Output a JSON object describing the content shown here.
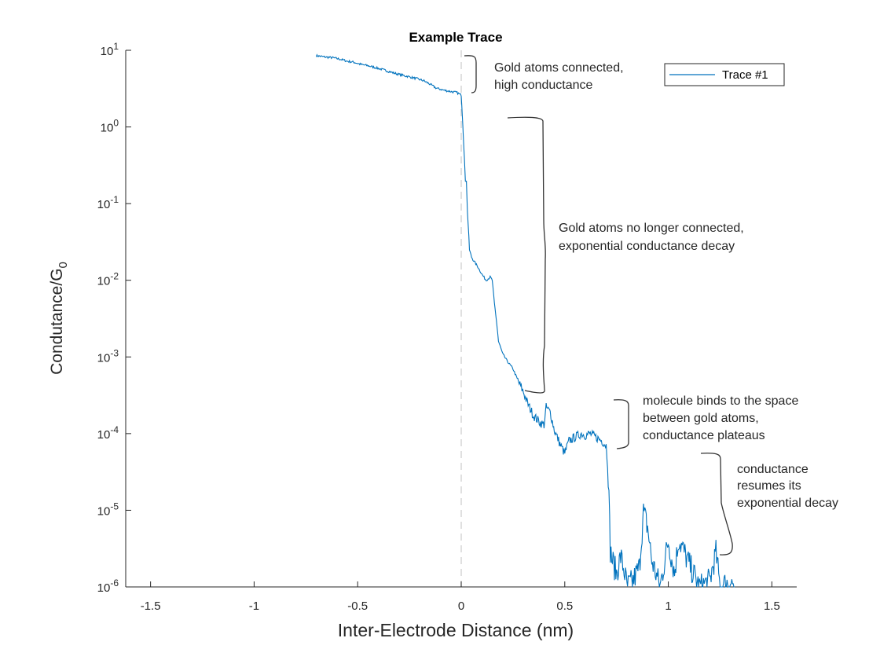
{
  "chart_data": {
    "type": "line",
    "title": "Example Trace",
    "xlabel": "Inter-Electrode Distance (nm)",
    "ylabel": "Condutance/G",
    "ylabel_subscript": "0",
    "xlim": [
      -1.62,
      1.62
    ],
    "ylim": [
      1e-06,
      10
    ],
    "yscale": "log",
    "x_ticks": [
      -1.5,
      -1,
      -0.5,
      0,
      0.5,
      1,
      1.5
    ],
    "x_tick_labels": [
      "-1.5",
      "-1",
      "-0.5",
      "0",
      "0.5",
      "1",
      "1.5"
    ],
    "y_tick_exponents": [
      "1",
      "0",
      "-1",
      "-2",
      "-3",
      "-4",
      "-5",
      "-6"
    ],
    "y_tick_base": "10",
    "grid": false,
    "legend_position": "top-right",
    "reference_line": {
      "x": 0,
      "style": "dashed"
    },
    "series": [
      {
        "name": "Trace #1",
        "color": "#0072BD",
        "x": [
          -0.7,
          -0.66,
          -0.62,
          -0.58,
          -0.55,
          -0.52,
          -0.48,
          -0.45,
          -0.42,
          -0.38,
          -0.35,
          -0.32,
          -0.28,
          -0.25,
          -0.22,
          -0.18,
          -0.15,
          -0.12,
          -0.1,
          -0.08,
          -0.05,
          -0.02,
          0.0,
          0.005,
          0.01,
          0.015,
          0.02,
          0.025,
          0.03,
          0.04,
          0.05,
          0.06,
          0.08,
          0.1,
          0.12,
          0.14,
          0.15,
          0.16,
          0.17,
          0.18,
          0.2,
          0.22,
          0.25,
          0.28,
          0.3,
          0.32,
          0.35,
          0.38,
          0.4,
          0.41,
          0.43,
          0.45,
          0.48,
          0.5,
          0.52,
          0.55,
          0.58,
          0.6,
          0.62,
          0.65,
          0.68,
          0.7,
          0.71,
          0.72,
          0.73,
          0.75,
          0.77,
          0.79,
          0.8,
          0.83,
          0.86,
          0.88,
          0.9,
          0.92,
          0.94,
          0.96,
          1.0,
          1.03,
          1.05,
          1.1,
          1.15,
          1.2,
          1.23,
          1.25,
          1.3,
          1.32
        ],
        "y": [
          8.5,
          8.2,
          8.0,
          7.6,
          7.2,
          7.0,
          6.5,
          6.3,
          6.0,
          5.6,
          5.3,
          5.0,
          4.7,
          4.5,
          4.3,
          4.0,
          3.6,
          3.2,
          3.1,
          3.0,
          2.9,
          2.8,
          2.6,
          1.5,
          0.8,
          0.4,
          0.2,
          0.2,
          0.08,
          0.025,
          0.02,
          0.018,
          0.015,
          0.012,
          0.01,
          0.011,
          0.01,
          0.005,
          0.003,
          0.0016,
          0.0011,
          0.0009,
          0.0007,
          0.00045,
          0.00035,
          0.00025,
          0.00017,
          0.00014,
          0.00013,
          0.00022,
          0.00019,
          0.00011,
          7e-05,
          5.5e-05,
          8e-05,
          9e-05,
          0.0001,
          9.5e-05,
          0.0001,
          9e-05,
          8e-05,
          7e-05,
          3e-05,
          3e-06,
          2.2e-06,
          1.5e-06,
          2.5e-06,
          1.5e-06,
          1e-06,
          1.2e-06,
          1.8e-06,
          9.5e-06,
          6e-06,
          2.2e-06,
          1.5e-06,
          1e-06,
          4e-06,
          1.5e-06,
          4.2e-06,
          2e-06,
          1e-06,
          1.2e-06,
          2.8e-06,
          1e-06,
          1.2e-06,
          1e-06
        ]
      }
    ],
    "annotations": [
      {
        "lines": [
          "Gold atoms connected,",
          "high conductance"
        ]
      },
      {
        "lines": [
          "Gold atoms no longer connected,",
          "exponential conductance decay"
        ]
      },
      {
        "lines": [
          "molecule binds to the space",
          "between gold atoms,",
          "conductance plateaus"
        ]
      },
      {
        "lines": [
          "conductance",
          "resumes its",
          "exponential decay"
        ]
      }
    ]
  }
}
